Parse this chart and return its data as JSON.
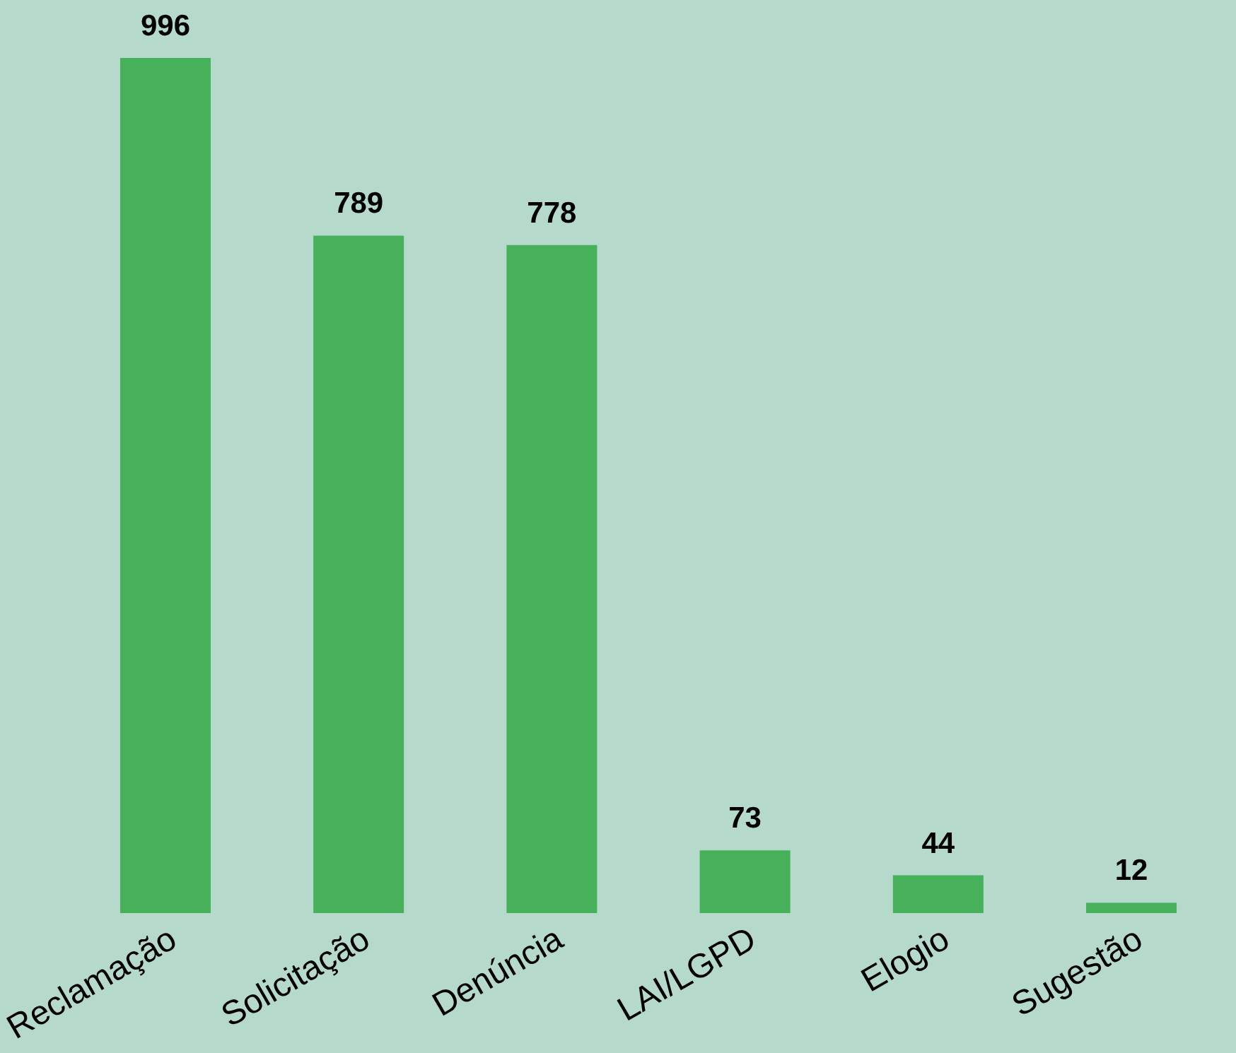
{
  "chart_data": {
    "type": "bar",
    "categories": [
      "Reclamação",
      "Solicitação",
      "Denúncia",
      "LAI/LGPD",
      "Elogio",
      "Sugestão"
    ],
    "values": [
      996,
      789,
      778,
      73,
      44,
      12
    ],
    "color": "#47b05a",
    "data_labels": true,
    "grid": false
  }
}
